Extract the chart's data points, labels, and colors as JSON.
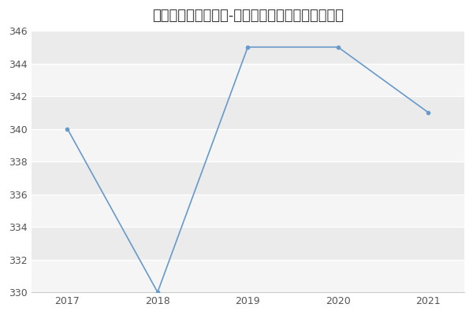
{
  "title": "四川大学工业工程（-历年复试）研究生录取分数线",
  "years": [
    2017,
    2018,
    2019,
    2020,
    2021
  ],
  "scores": [
    340,
    330,
    345,
    345,
    341
  ],
  "line_color": "#6699cc",
  "fig_bg_color": "#ffffff",
  "plot_bg_color": "#ebebeb",
  "band_color": "#e0e0e0",
  "ylim_min": 330,
  "ylim_max": 346,
  "yticks": [
    330,
    332,
    334,
    336,
    338,
    340,
    342,
    344,
    346
  ],
  "xticks": [
    2017,
    2018,
    2019,
    2020,
    2021
  ],
  "title_fontsize": 13,
  "tick_fontsize": 9,
  "tick_color": "#555555",
  "spine_color": "#cccccc",
  "grid_color": "#d8d8d8",
  "line_width": 1.2
}
